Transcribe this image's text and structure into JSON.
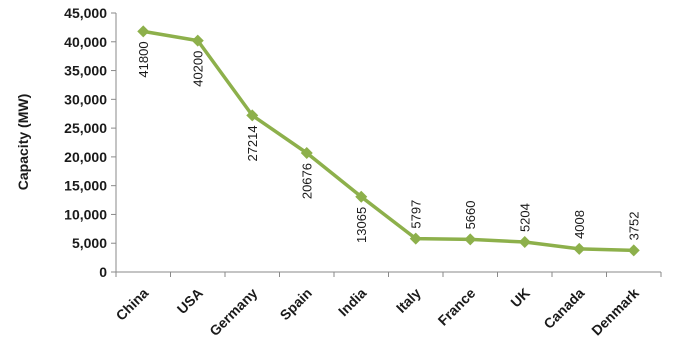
{
  "chart_data": {
    "type": "line",
    "title": "",
    "xlabel": "",
    "ylabel": "Capacity (MW)",
    "ylim": [
      0,
      45000
    ],
    "yticks": [
      0,
      5000,
      10000,
      15000,
      20000,
      25000,
      30000,
      35000,
      40000,
      45000
    ],
    "ytick_labels": [
      "0",
      "5,000",
      "10,000",
      "15,000",
      "20,000",
      "25,000",
      "30,000",
      "35,000",
      "40,000",
      "45,000"
    ],
    "categories": [
      "China",
      "USA",
      "Germany",
      "Spain",
      "India",
      "Italy",
      "France",
      "UK",
      "Canada",
      "Denmark"
    ],
    "values": [
      41800,
      40200,
      27214,
      20676,
      13065,
      5797,
      5660,
      5204,
      4008,
      3752
    ],
    "data_labels": [
      "41800",
      "40200",
      "27214",
      "20676",
      "13065",
      "5797",
      "5660",
      "5204",
      "4008",
      "3752"
    ],
    "grid": false,
    "legend": "none",
    "line_color": "#8db04b",
    "marker": "diamond"
  }
}
